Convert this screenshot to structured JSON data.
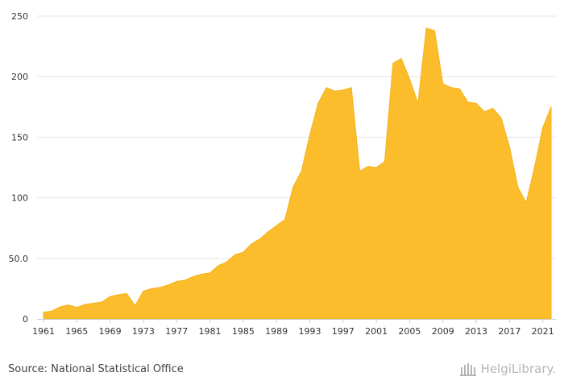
{
  "chart_data": {
    "type": "area",
    "x": [
      1961,
      1962,
      1963,
      1964,
      1965,
      1966,
      1967,
      1968,
      1969,
      1970,
      1971,
      1972,
      1973,
      1974,
      1975,
      1976,
      1977,
      1978,
      1979,
      1980,
      1981,
      1982,
      1983,
      1984,
      1985,
      1986,
      1987,
      1988,
      1989,
      1990,
      1991,
      1992,
      1993,
      1994,
      1995,
      1996,
      1997,
      1998,
      1999,
      2000,
      2001,
      2002,
      2003,
      2004,
      2005,
      2006,
      2007,
      2008,
      2009,
      2010,
      2011,
      2012,
      2013,
      2014,
      2015,
      2016,
      2017,
      2018,
      2019,
      2020,
      2021,
      2022
    ],
    "series": [
      {
        "values": [
          5.5,
          6.5,
          10,
          11.5,
          9.5,
          12,
          13,
          14,
          18.5,
          20,
          21,
          11,
          23,
          25,
          26,
          28,
          31,
          32,
          35,
          37,
          38,
          44,
          47,
          53,
          55,
          62,
          66,
          72,
          77,
          82,
          109,
          122,
          152,
          178,
          191,
          188,
          189,
          191,
          122,
          126,
          125,
          130,
          211,
          215,
          198,
          178,
          240,
          238,
          194,
          191,
          190,
          179,
          178,
          171,
          174,
          166,
          142,
          109,
          96,
          125,
          158,
          175
        ]
      }
    ],
    "x_ticks": [
      "1961",
      "1965",
      "1969",
      "1973",
      "1977",
      "1981",
      "1985",
      "1989",
      "1993",
      "1997",
      "2001",
      "2005",
      "2009",
      "2013",
      "2017",
      "2021"
    ],
    "y_ticks": [
      "0",
      "50.0",
      "100",
      "150",
      "200",
      "250"
    ],
    "ylim": [
      0,
      250
    ],
    "grid": true,
    "color": "#FBBD2C"
  },
  "footer": {
    "source": "Source: National Statistical Office",
    "logo_text": "HelgiLibrary."
  }
}
